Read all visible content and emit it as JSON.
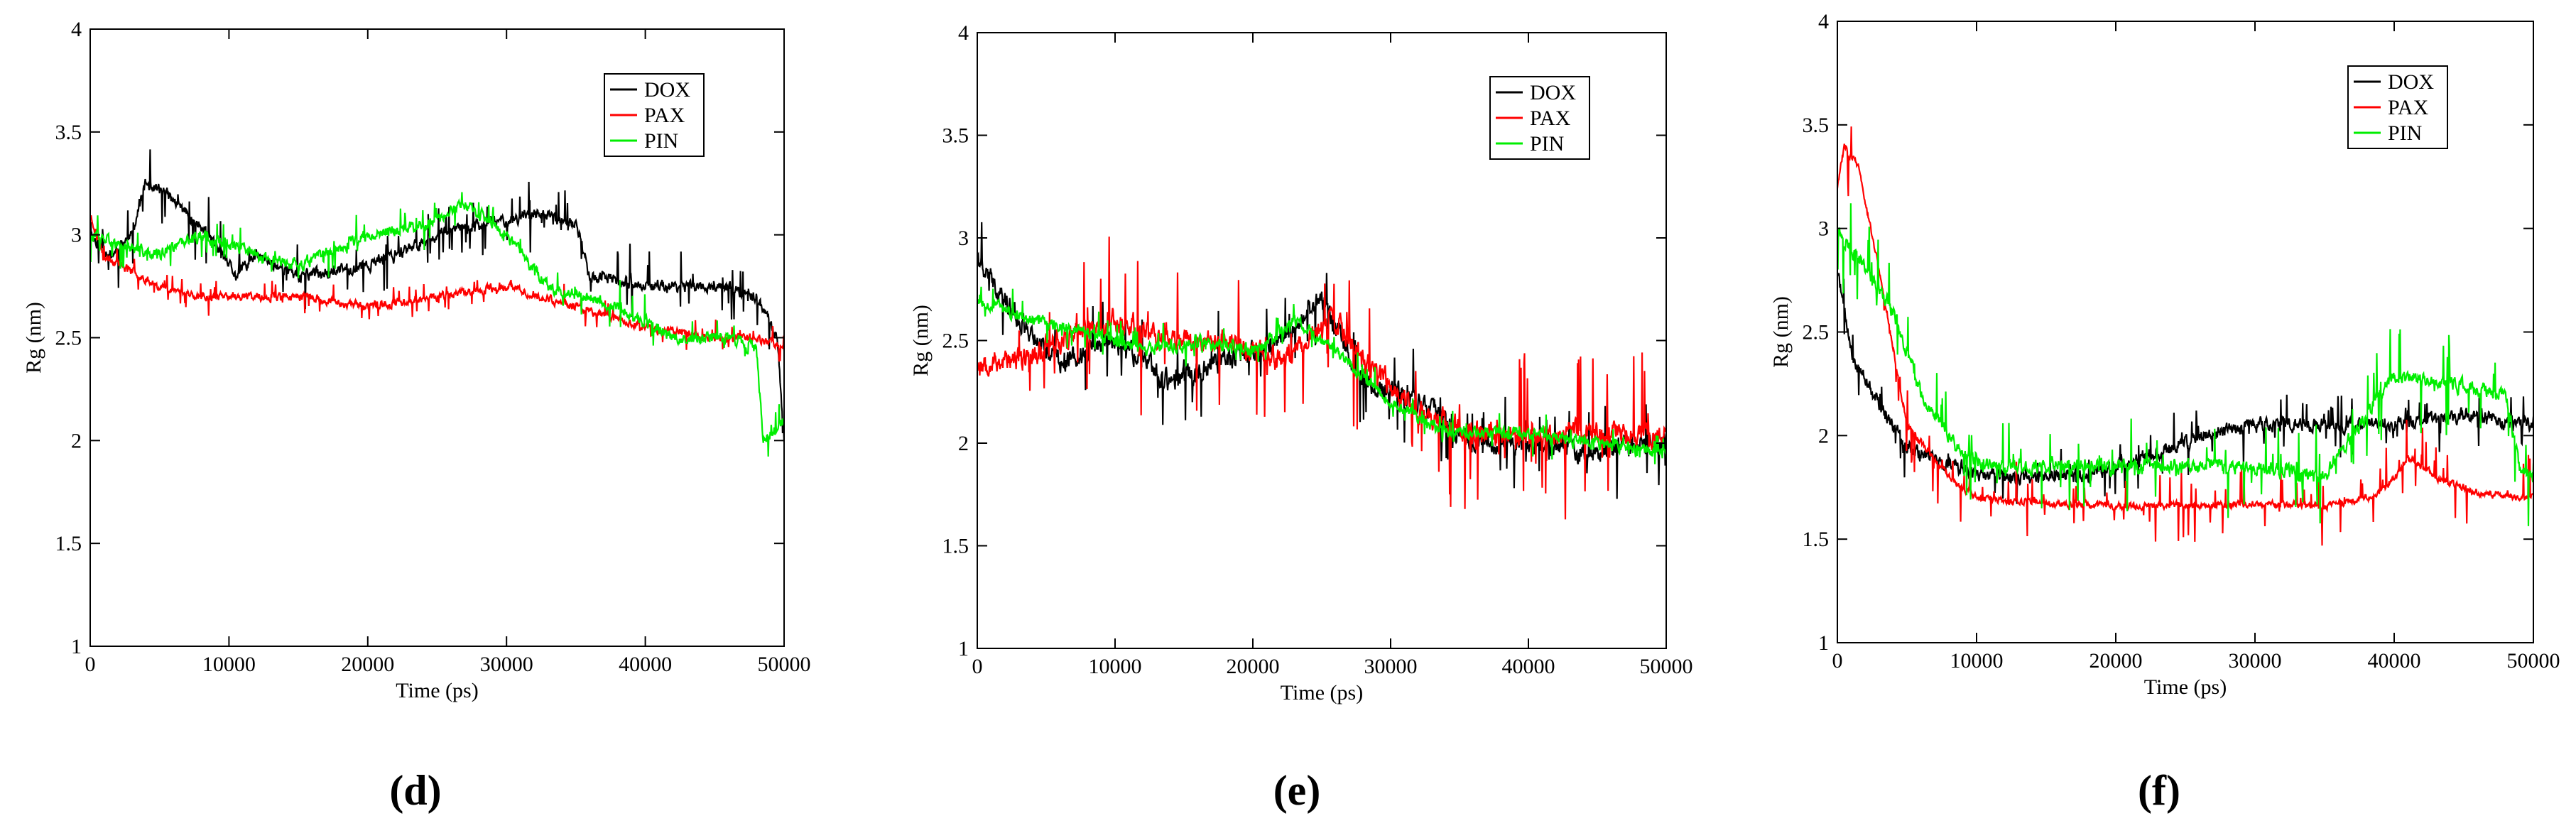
{
  "figure": {
    "panel_labels": [
      "(d)",
      "(e)",
      "(f)"
    ]
  },
  "colors": {
    "DOX": "#000000",
    "PAX": "#ff0000",
    "PIN": "#00ee00"
  },
  "chart_data": [
    {
      "type": "line",
      "panel": "(d)",
      "title": "",
      "xlabel": "Time (ps)",
      "ylabel": "Rg (nm)",
      "xlim": [
        0,
        50000
      ],
      "ylim": [
        1,
        4
      ],
      "xticks": [
        0,
        10000,
        20000,
        30000,
        40000,
        50000
      ],
      "yticks": [
        1,
        1.5,
        2,
        2.5,
        3,
        3.5,
        4
      ],
      "legend_position": "top-right",
      "series": [
        {
          "name": "DOX",
          "color": "#000000",
          "noise": 0.05,
          "spike": 0.18,
          "seed": 11,
          "trend": [
            [
              0,
              3.0
            ],
            [
              1500,
              2.9
            ],
            [
              3000,
              3.0
            ],
            [
              4000,
              3.25
            ],
            [
              5500,
              3.2
            ],
            [
              7000,
              3.1
            ],
            [
              8500,
              3.0
            ],
            [
              10500,
              2.8
            ],
            [
              12000,
              2.9
            ],
            [
              15000,
              2.8
            ],
            [
              20000,
              2.85
            ],
            [
              25000,
              3.0
            ],
            [
              28000,
              3.05
            ],
            [
              32000,
              3.1
            ],
            [
              35000,
              3.05
            ],
            [
              36000,
              2.8
            ],
            [
              40000,
              2.75
            ],
            [
              45000,
              2.75
            ],
            [
              48000,
              2.7
            ],
            [
              49500,
              2.5
            ],
            [
              50000,
              2.0
            ]
          ]
        },
        {
          "name": "PAX",
          "color": "#ff0000",
          "noise": 0.035,
          "spike": 0.08,
          "seed": 23,
          "trend": [
            [
              0,
              3.1
            ],
            [
              1000,
              2.9
            ],
            [
              5000,
              2.75
            ],
            [
              8000,
              2.7
            ],
            [
              15000,
              2.7
            ],
            [
              20000,
              2.65
            ],
            [
              25000,
              2.7
            ],
            [
              30000,
              2.75
            ],
            [
              35000,
              2.65
            ],
            [
              40000,
              2.55
            ],
            [
              45000,
              2.5
            ],
            [
              48000,
              2.5
            ],
            [
              50000,
              2.45
            ]
          ]
        },
        {
          "name": "PIN",
          "color": "#00ee00",
          "noise": 0.05,
          "spike": 0.12,
          "seed": 37,
          "trend": [
            [
              0,
              3.0
            ],
            [
              2000,
              2.95
            ],
            [
              5000,
              2.9
            ],
            [
              8000,
              3.0
            ],
            [
              12000,
              2.9
            ],
            [
              15000,
              2.85
            ],
            [
              20000,
              3.0
            ],
            [
              24000,
              3.05
            ],
            [
              27000,
              3.15
            ],
            [
              30000,
              3.0
            ],
            [
              33000,
              2.75
            ],
            [
              38000,
              2.65
            ],
            [
              42000,
              2.5
            ],
            [
              46000,
              2.5
            ],
            [
              48000,
              2.45
            ],
            [
              48500,
              2.0
            ],
            [
              50000,
              2.1
            ]
          ]
        }
      ]
    },
    {
      "type": "line",
      "panel": "(e)",
      "title": "",
      "xlabel": "Time (ps)",
      "ylabel": "Rg (nm)",
      "xlim": [
        0,
        50000
      ],
      "ylim": [
        1,
        4
      ],
      "xticks": [
        0,
        10000,
        20000,
        30000,
        40000,
        50000
      ],
      "yticks": [
        1,
        1.5,
        2,
        2.5,
        3,
        3.5,
        4
      ],
      "legend_position": "top-right",
      "series": [
        {
          "name": "DOX",
          "color": "#000000",
          "noise": 0.09,
          "spike": 0.25,
          "seed": 41,
          "trend": [
            [
              0,
              2.9
            ],
            [
              3000,
              2.6
            ],
            [
              6000,
              2.4
            ],
            [
              10000,
              2.5
            ],
            [
              14000,
              2.3
            ],
            [
              18000,
              2.4
            ],
            [
              22000,
              2.5
            ],
            [
              25000,
              2.7
            ],
            [
              28000,
              2.3
            ],
            [
              32000,
              2.2
            ],
            [
              36000,
              2.0
            ],
            [
              40000,
              2.0
            ],
            [
              45000,
              1.95
            ],
            [
              48000,
              2.0
            ],
            [
              50000,
              2.0
            ]
          ]
        },
        {
          "name": "PAX",
          "color": "#ff0000",
          "noise": 0.1,
          "spike": 0.4,
          "seed": 53,
          "trend": [
            [
              0,
              2.4
            ],
            [
              3000,
              2.4
            ],
            [
              6000,
              2.5
            ],
            [
              10000,
              2.6
            ],
            [
              14000,
              2.5
            ],
            [
              18000,
              2.5
            ],
            [
              22000,
              2.4
            ],
            [
              26000,
              2.6
            ],
            [
              28000,
              2.4
            ],
            [
              32000,
              2.15
            ],
            [
              36000,
              2.05
            ],
            [
              40000,
              2.05
            ],
            [
              45000,
              2.05
            ],
            [
              50000,
              2.05
            ]
          ]
        },
        {
          "name": "PIN",
          "color": "#00ee00",
          "noise": 0.05,
          "spike": 0.1,
          "seed": 67,
          "trend": [
            [
              0,
              2.7
            ],
            [
              4000,
              2.6
            ],
            [
              8000,
              2.55
            ],
            [
              12000,
              2.45
            ],
            [
              16000,
              2.5
            ],
            [
              20000,
              2.45
            ],
            [
              23000,
              2.6
            ],
            [
              26000,
              2.45
            ],
            [
              30000,
              2.2
            ],
            [
              34000,
              2.05
            ],
            [
              40000,
              2.05
            ],
            [
              45000,
              2.0
            ],
            [
              50000,
              1.95
            ]
          ]
        }
      ]
    },
    {
      "type": "line",
      "panel": "(f)",
      "title": "",
      "xlabel": "Time (ps)",
      "ylabel": "Rg (nm)",
      "xlim": [
        0,
        50000
      ],
      "ylim": [
        1,
        4
      ],
      "xticks": [
        0,
        10000,
        20000,
        30000,
        40000,
        50000
      ],
      "yticks": [
        1,
        1.5,
        2,
        2.5,
        3,
        3.5,
        4
      ],
      "legend_position": "top-right",
      "series": [
        {
          "name": "DOX",
          "color": "#000000",
          "noise": 0.06,
          "spike": 0.15,
          "seed": 71,
          "trend": [
            [
              0,
              2.8
            ],
            [
              1000,
              2.4
            ],
            [
              2500,
              2.2
            ],
            [
              5000,
              1.95
            ],
            [
              8000,
              1.85
            ],
            [
              12000,
              1.8
            ],
            [
              18000,
              1.8
            ],
            [
              22000,
              1.9
            ],
            [
              26000,
              2.0
            ],
            [
              30000,
              2.05
            ],
            [
              35000,
              2.05
            ],
            [
              40000,
              2.05
            ],
            [
              45000,
              2.1
            ],
            [
              50000,
              2.05
            ]
          ]
        },
        {
          "name": "PAX",
          "color": "#ff0000",
          "noise": 0.03,
          "spike": 0.2,
          "seed": 83,
          "trend": [
            [
              0,
              3.2
            ],
            [
              500,
              3.4
            ],
            [
              1500,
              3.3
            ],
            [
              3000,
              2.8
            ],
            [
              5000,
              2.05
            ],
            [
              8000,
              1.8
            ],
            [
              10000,
              1.7
            ],
            [
              15000,
              1.67
            ],
            [
              20000,
              1.66
            ],
            [
              30000,
              1.67
            ],
            [
              35000,
              1.66
            ],
            [
              38000,
              1.7
            ],
            [
              39500,
              1.75
            ],
            [
              41000,
              1.9
            ],
            [
              43000,
              1.8
            ],
            [
              46000,
              1.72
            ],
            [
              50000,
              1.7
            ]
          ]
        },
        {
          "name": "PIN",
          "color": "#00ee00",
          "noise": 0.06,
          "spike": 0.25,
          "seed": 97,
          "trend": [
            [
              0,
              3.0
            ],
            [
              2000,
              2.8
            ],
            [
              4000,
              2.6
            ],
            [
              6000,
              2.2
            ],
            [
              9000,
              1.9
            ],
            [
              12000,
              1.85
            ],
            [
              16000,
              1.85
            ],
            [
              20000,
              1.85
            ],
            [
              25000,
              1.85
            ],
            [
              30000,
              1.85
            ],
            [
              35000,
              1.8
            ],
            [
              38000,
              2.1
            ],
            [
              40000,
              2.3
            ],
            [
              44000,
              2.25
            ],
            [
              48000,
              2.2
            ],
            [
              49000,
              1.85
            ],
            [
              50000,
              1.8
            ]
          ]
        }
      ]
    }
  ]
}
